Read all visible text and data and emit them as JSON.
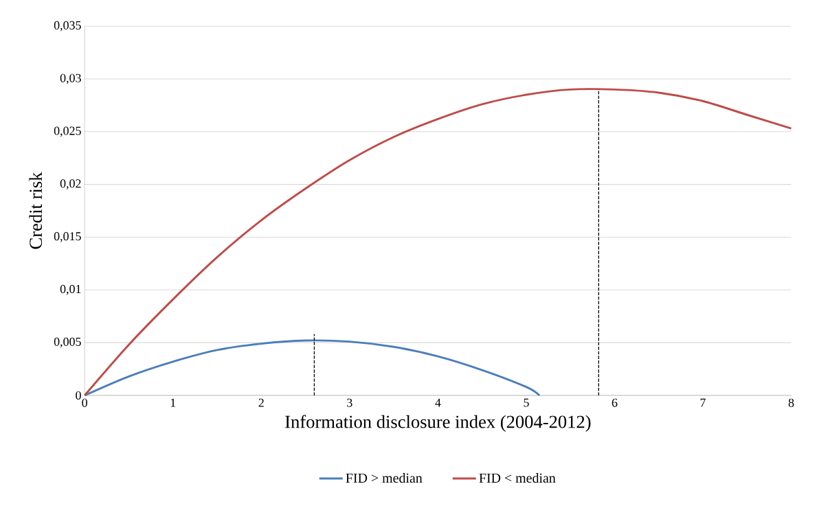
{
  "chart_data": {
    "type": "line",
    "xlabel": "Information disclosure index (2004-2012)",
    "ylabel": "Credit risk",
    "xlim": [
      0,
      8
    ],
    "xticks": [
      0,
      1,
      2,
      3,
      4,
      5,
      6,
      7,
      8
    ],
    "ylim": [
      0,
      0.035
    ],
    "yticks": [
      0,
      {
        "value": 0.005,
        "label": "0,005"
      },
      {
        "value": 0.01,
        "label": "0,01"
      },
      {
        "value": 0.015,
        "label": "0,015"
      },
      {
        "value": 0.02,
        "label": "0,02"
      },
      {
        "value": 0.025,
        "label": "0,025"
      },
      {
        "value": 0.03,
        "label": "0,03"
      },
      {
        "value": 0.035,
        "label": "0,035"
      }
    ],
    "grid": "y",
    "legend": "bottom",
    "line_style": "solid",
    "series": [
      {
        "name": "FID > median",
        "color": "#4a7ebb",
        "x": [
          0,
          0.5,
          1,
          1.5,
          2,
          2.5,
          3,
          3.5,
          4,
          4.5,
          5,
          5.15
        ],
        "values": [
          0,
          0.0018,
          0.0032,
          0.0043,
          0.0049,
          0.0052,
          0.0051,
          0.0046,
          0.0037,
          0.0024,
          0.0008,
          0
        ]
      },
      {
        "name": "FID < median",
        "color": "#be4b48",
        "x": [
          0,
          0.5,
          1,
          1.5,
          2,
          2.5,
          3,
          3.5,
          4,
          4.5,
          5,
          5.5,
          6,
          6.5,
          7,
          7.5,
          8
        ],
        "values": [
          0,
          0.0048,
          0.0091,
          0.0131,
          0.0166,
          0.0196,
          0.0223,
          0.0245,
          0.0262,
          0.0276,
          0.0285,
          0.029,
          0.029,
          0.0287,
          0.0279,
          0.0266,
          0.0253
        ]
      },
      {
        "type": "line",
        "color": "#000000",
        "line_style": "dashed",
        "x": [
          2.6,
          2.6
        ],
        "values": [
          0,
          0.0058
        ]
      },
      {
        "type": "line",
        "color": "#000000",
        "line_style": "dashed",
        "x": [
          5.82,
          5.82
        ],
        "values": [
          0,
          0.029
        ]
      }
    ]
  }
}
